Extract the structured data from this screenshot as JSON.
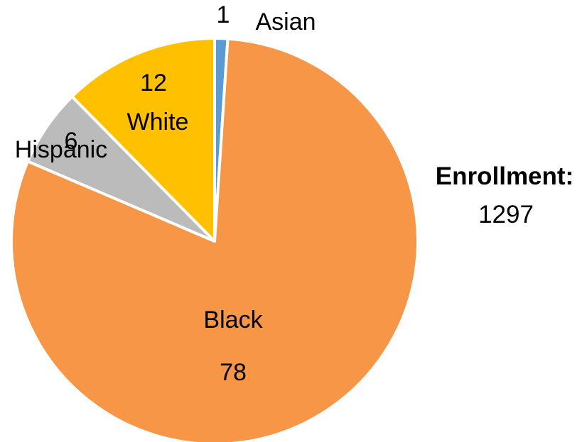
{
  "chart_data": {
    "type": "pie",
    "categories": [
      "Asian",
      "Black",
      "Hispanic",
      "White"
    ],
    "values": [
      1,
      78,
      6,
      12
    ],
    "colors": {
      "Asian": "#5B9BD5",
      "Black": "#F79646",
      "Hispanic": "#BBBBBB",
      "White": "#FFC000"
    },
    "slice_border_color": "#FFFFFF",
    "start_angle": "12 o'clock",
    "direction": "clockwise"
  },
  "enrollment": {
    "label": "Enrollment:",
    "value": "1297"
  }
}
